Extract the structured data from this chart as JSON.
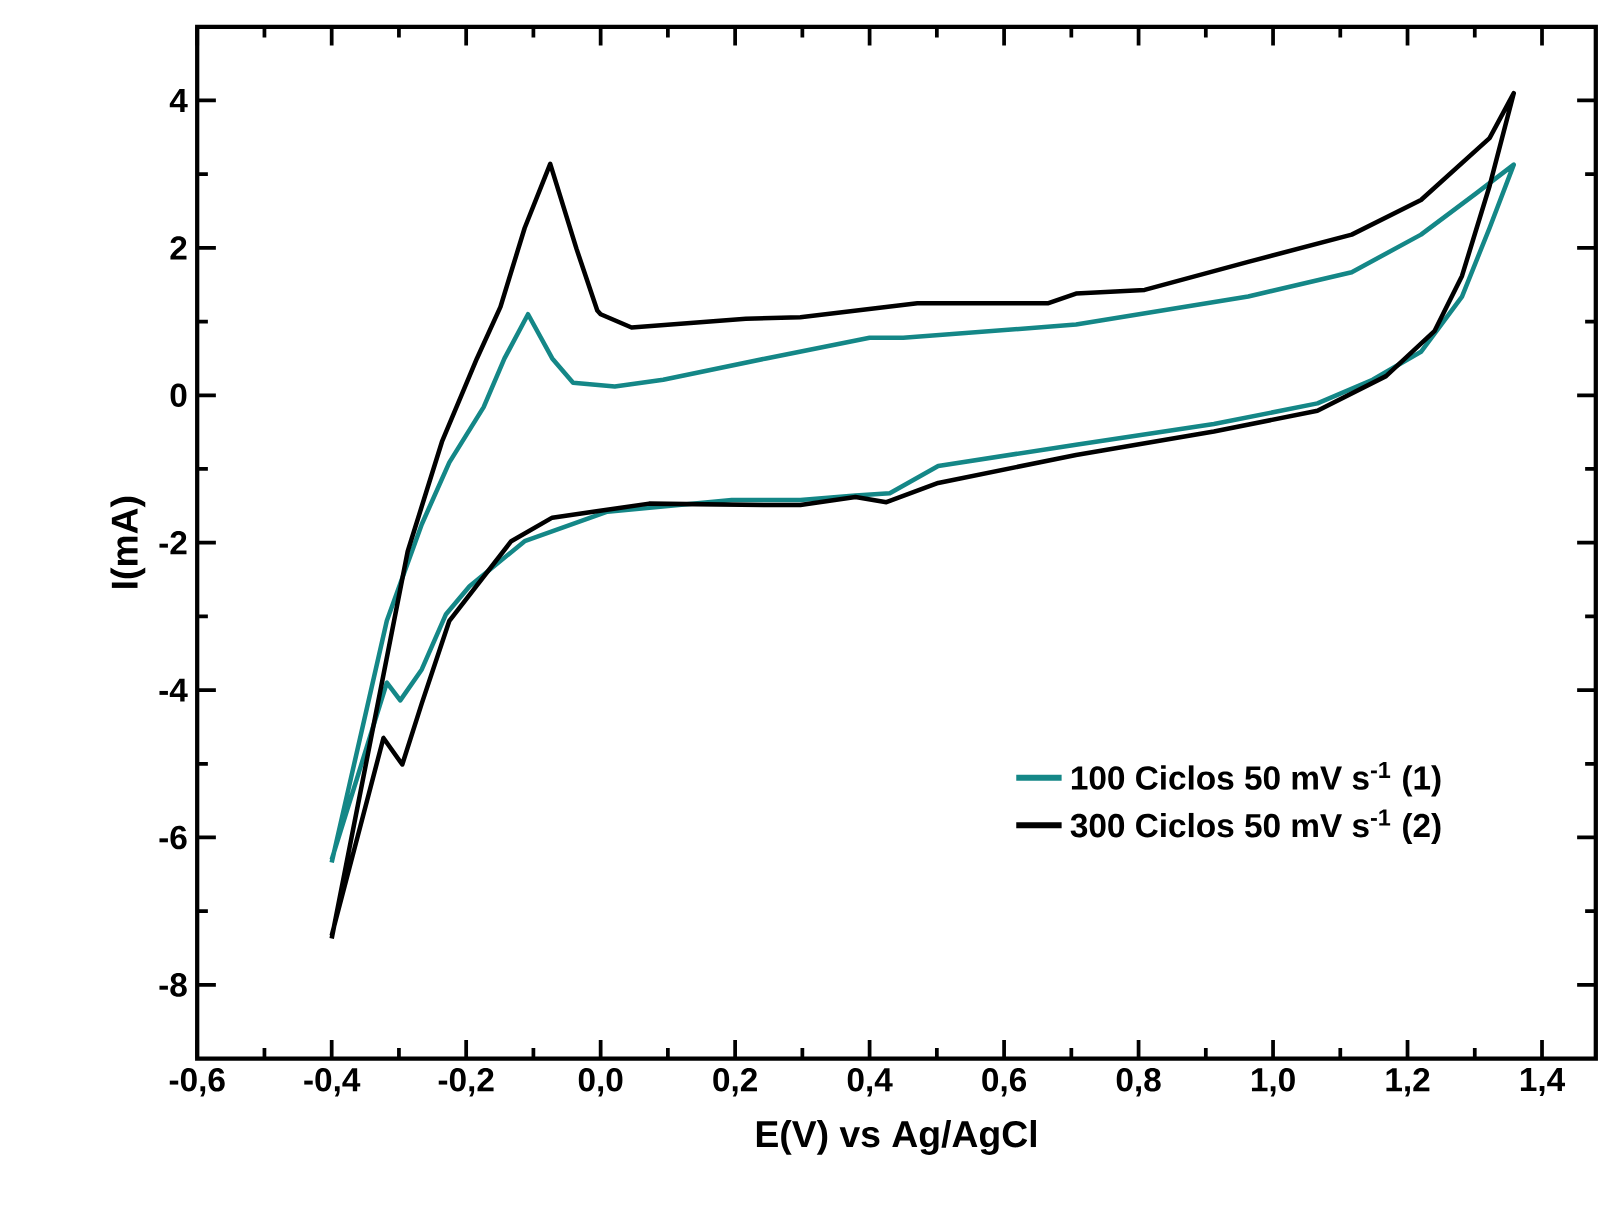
{
  "chart_data": {
    "type": "line",
    "xlabel": "E(V) vs Ag/AgCl",
    "ylabel": "I(mA)",
    "xlim": [
      -0.6,
      1.48
    ],
    "ylim": [
      -9,
      5
    ],
    "xticks": [
      {
        "value": -0.6,
        "label": "-0,6"
      },
      {
        "value": -0.4,
        "label": "-0,4"
      },
      {
        "value": -0.2,
        "label": "-0,2"
      },
      {
        "value": 0.0,
        "label": "0,0"
      },
      {
        "value": 0.2,
        "label": "0,2"
      },
      {
        "value": 0.4,
        "label": "0,4"
      },
      {
        "value": 0.6,
        "label": "0,6"
      },
      {
        "value": 0.8,
        "label": "0,8"
      },
      {
        "value": 1.0,
        "label": "1,0"
      },
      {
        "value": 1.2,
        "label": "1,2"
      },
      {
        "value": 1.4,
        "label": "1,4"
      }
    ],
    "yticks": [
      -8,
      -6,
      -4,
      -2,
      0,
      2,
      4
    ],
    "grid": false,
    "legend": "bottom right",
    "marker": "none",
    "series": [
      {
        "name": "100 Ciclos 50 mV s$^{-1}$ (1)",
        "color": "#148787",
        "x": [
          -0.4,
          -0.318,
          -0.266,
          -0.225,
          -0.174,
          -0.143,
          -0.108,
          -0.072,
          -0.041,
          0.021,
          0.093,
          0.246,
          0.4,
          0.45,
          0.707,
          0.963,
          1.117,
          1.22,
          1.302,
          1.358,
          1.322,
          1.281,
          1.22,
          1.148,
          1.066,
          0.912,
          0.707,
          0.502,
          0.43,
          0.379,
          0.297,
          0.195,
          0.01,
          -0.113,
          -0.195,
          -0.23,
          -0.266,
          -0.298,
          -0.318,
          -0.4
        ],
        "values": [
          -6.34,
          -3.06,
          -1.75,
          -0.91,
          -0.16,
          0.5,
          1.1,
          0.5,
          0.17,
          0.12,
          0.21,
          0.5,
          0.78,
          0.78,
          0.96,
          1.34,
          1.67,
          2.18,
          2.74,
          3.13,
          2.27,
          1.34,
          0.59,
          0.21,
          -0.11,
          -0.39,
          -0.67,
          -0.96,
          -1.33,
          -1.36,
          -1.42,
          -1.42,
          -1.58,
          -1.98,
          -2.59,
          -2.97,
          -3.72,
          -4.14,
          -3.9,
          -6.3
        ]
      },
      {
        "name": "300 Ciclos 50 mV s$^{-1}$ (2)",
        "color": "#000000",
        "x": [
          -0.4,
          -0.287,
          -0.236,
          -0.184,
          -0.149,
          -0.113,
          -0.075,
          -0.036,
          -0.005,
          0.0,
          0.046,
          0.216,
          0.297,
          0.471,
          0.666,
          0.707,
          0.809,
          0.963,
          1.117,
          1.22,
          1.322,
          1.358,
          1.322,
          1.281,
          1.24,
          1.168,
          1.066,
          0.912,
          0.707,
          0.502,
          0.425,
          0.379,
          0.297,
          0.267,
          0.072,
          -0.072,
          -0.133,
          -0.225,
          -0.266,
          -0.295,
          -0.323,
          -0.4
        ],
        "values": [
          -7.37,
          -2.12,
          -0.63,
          0.5,
          1.2,
          2.27,
          3.14,
          1.99,
          1.15,
          1.1,
          0.92,
          1.04,
          1.06,
          1.25,
          1.25,
          1.38,
          1.43,
          1.81,
          2.18,
          2.65,
          3.49,
          4.1,
          2.84,
          1.62,
          0.87,
          0.26,
          -0.21,
          -0.49,
          -0.81,
          -1.19,
          -1.45,
          -1.38,
          -1.49,
          -1.49,
          -1.47,
          -1.66,
          -1.98,
          -3.06,
          -4.18,
          -5.01,
          -4.65,
          -7.33
        ]
      }
    ]
  }
}
